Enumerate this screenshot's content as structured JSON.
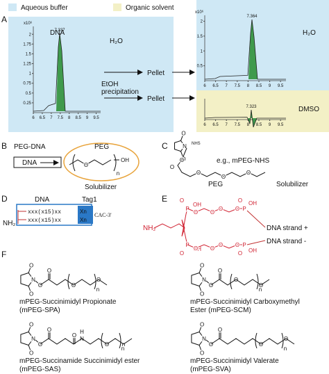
{
  "panel_a": {
    "label": "A",
    "legend": {
      "aqueous": "Aqueous buffer",
      "organic": "Organic solvent"
    },
    "chromatogram_1": {
      "scale": "x10⁶",
      "title": "DNA",
      "peak_label": "7.337",
      "yticks": [
        0.25,
        0.5,
        0.75,
        1,
        1.25,
        1.5,
        1.75,
        2
      ],
      "xticks": [
        6,
        6.5,
        7,
        7.5,
        8,
        8.5,
        9,
        9.5
      ]
    },
    "solvent_1": "H₂O",
    "precipitation": [
      "EtOH",
      "precipitation"
    ],
    "pellet_1": "Pellet",
    "pellet_2": "Pellet",
    "chromatogram_2": {
      "scale": "x10⁶",
      "peak_label": "7.364",
      "yticks": [
        0.5,
        1,
        1.5,
        2
      ],
      "xticks": [
        6,
        6.5,
        7,
        7.5,
        8,
        8.5,
        9,
        9.5
      ]
    },
    "solvent_2": "H₂O",
    "chromatogram_3": {
      "peak_label": "7.323",
      "xticks": [
        6,
        6.5,
        7,
        7.5,
        8,
        8.5,
        9,
        9.5
      ]
    },
    "solvent_3": "DMSO"
  },
  "panel_b": {
    "label": "B",
    "title": "PEG-DNA",
    "box": "DNA",
    "peg": "PEG",
    "atoms": [
      "O",
      "OH",
      "n"
    ],
    "caption": "Solubilizer"
  },
  "panel_c": {
    "label": "C",
    "nhs": "NHS",
    "example": "e.g., mPEG-NHS",
    "peg": "PEG",
    "caption": "Solubilizer",
    "atoms": [
      "O",
      "O",
      "N",
      "O",
      "O",
      "O",
      "O",
      "O"
    ]
  },
  "panel_d": {
    "label": "D",
    "dna": "DNA",
    "tag": "Tag1",
    "amine": "NH₂",
    "strands": [
      "xxx(x15)xx",
      "xxx(x15)xx"
    ],
    "tags": [
      "Xn",
      "Xn"
    ],
    "end": "CAC-3'"
  },
  "panel_e": {
    "label": "E",
    "amine": "NH₂",
    "top_atoms": [
      "O",
      "P",
      "OH",
      "O",
      "O",
      "O",
      "O",
      "P",
      "O",
      "OH"
    ],
    "bottom_atoms": [
      "O",
      "P",
      "OH",
      "O",
      "O",
      "O",
      "O",
      "P",
      "O",
      "OH"
    ],
    "strands": [
      "DNA strand +",
      "DNA strand -"
    ]
  },
  "panel_f": {
    "label": "F",
    "structures": [
      {
        "atoms": [
          "O",
          "O",
          "N",
          "O",
          "O",
          "O",
          "O",
          "n"
        ],
        "name": [
          "mPEG-Succinimidyl Propionate",
          "(mPEG-SPA)"
        ]
      },
      {
        "atoms": [
          "O",
          "O",
          "N",
          "O",
          "O",
          "O",
          "O",
          "n"
        ],
        "name": [
          "mPEG-Succinimidyl Carboxymethyl",
          "Ester (mPEG-SCM)"
        ]
      },
      {
        "atoms": [
          "O",
          "O",
          "N",
          "O",
          "O",
          "O",
          "N",
          "H",
          "O",
          "n"
        ],
        "name": [
          "mPEG-Succinamide Succinimidyl ester",
          "(mPEG-SAS)"
        ]
      },
      {
        "atoms": [
          "O",
          "O",
          "N",
          "O",
          "O",
          "O",
          "O",
          "n"
        ],
        "name": [
          "mPEG-Succinimidyl Valerate",
          "(mPEG-SVA)"
        ]
      }
    ]
  }
}
